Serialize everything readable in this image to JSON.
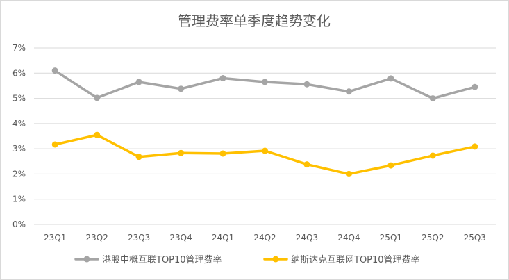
{
  "chart_data": {
    "type": "line",
    "title": "管理费率单季度趋势变化",
    "categories": [
      "23Q1",
      "23Q2",
      "23Q3",
      "23Q4",
      "24Q1",
      "24Q2",
      "24Q3",
      "24Q4",
      "25Q1",
      "25Q2",
      "25Q3"
    ],
    "y_ticks": [
      "0%",
      "1%",
      "2%",
      "3%",
      "4%",
      "5%",
      "6%",
      "7%"
    ],
    "ylim": [
      0,
      7
    ],
    "grid": true,
    "legend_position": "bottom",
    "series": [
      {
        "name": "港股中概互联TOP10管理费率",
        "color": "#a5a5a5",
        "values": [
          6.1,
          5.02,
          5.65,
          5.38,
          5.8,
          5.65,
          5.56,
          5.27,
          5.79,
          5.0,
          5.45
        ]
      },
      {
        "name": "纳斯达克互联网TOP10管理费率",
        "color": "#ffc000",
        "values": [
          3.17,
          3.55,
          2.68,
          2.83,
          2.81,
          2.92,
          2.38,
          2.0,
          2.34,
          2.73,
          3.09
        ]
      }
    ]
  }
}
